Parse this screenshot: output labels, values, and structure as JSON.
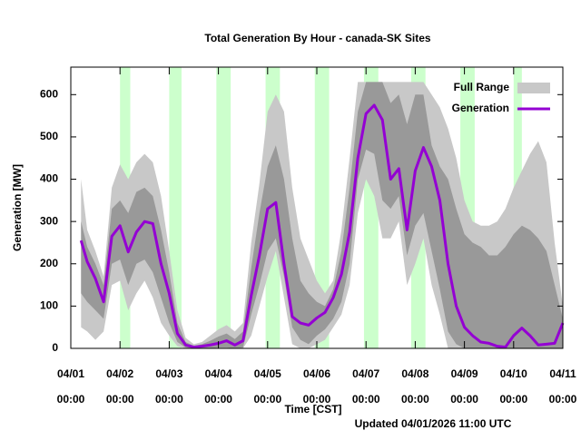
{
  "chart_data": {
    "type": "line",
    "title": "Total Generation By Hour - canada-SK Sites",
    "x_label": "Time [CST]",
    "y_label": "Generation [MW]",
    "footnote": "Updated 04/01/2026 11:00 UTC",
    "xlim": [
      0,
      240
    ],
    "ylim": [
      0,
      665
    ],
    "yticks": [
      0,
      100,
      200,
      300,
      400,
      500,
      600
    ],
    "xticks": [
      {
        "value": 0,
        "label": "04/01\n00:00"
      },
      {
        "value": 24,
        "label": "04/02\n00:00"
      },
      {
        "value": 48,
        "label": "04/03\n00:00"
      },
      {
        "value": 72,
        "label": "04/04\n00:00"
      },
      {
        "value": 96,
        "label": "04/05\n00:00"
      },
      {
        "value": 120,
        "label": "04/06\n00:00"
      },
      {
        "value": 144,
        "label": "04/07\n00:00"
      },
      {
        "value": 168,
        "label": "04/08\n00:00"
      },
      {
        "value": 192,
        "label": "04/09\n00:00"
      },
      {
        "value": 216,
        "label": "04/10\n00:00"
      },
      {
        "value": 240,
        "label": "04/11\n00:00"
      }
    ],
    "shading": {
      "color": "#ccffcc",
      "spans": [
        [
          24,
          29
        ],
        [
          48,
          54
        ],
        [
          71,
          78
        ],
        [
          95,
          102
        ],
        [
          119,
          126
        ],
        [
          143,
          150
        ],
        [
          166,
          173
        ],
        [
          190,
          197
        ],
        [
          216,
          220
        ]
      ]
    },
    "x": [
      5,
      8,
      12,
      16,
      20,
      24,
      28,
      32,
      36,
      40,
      44,
      48,
      52,
      56,
      60,
      64,
      68,
      72,
      76,
      80,
      84,
      88,
      92,
      96,
      100,
      104,
      108,
      112,
      116,
      120,
      124,
      128,
      132,
      136,
      140,
      144,
      148,
      152,
      156,
      160,
      164,
      168,
      172,
      176,
      180,
      184,
      188,
      192,
      196,
      200,
      204,
      208,
      212,
      216,
      220,
      224,
      228,
      232,
      236,
      240
    ],
    "bands": [
      {
        "name": "Full Range",
        "color": "#c8c8c8",
        "max": [
          400,
          280,
          230,
          170,
          380,
          435,
          400,
          440,
          460,
          440,
          360,
          230,
          90,
          25,
          10,
          15,
          30,
          45,
          55,
          40,
          60,
          250,
          390,
          560,
          600,
          560,
          380,
          260,
          210,
          160,
          130,
          160,
          280,
          450,
          630,
          630,
          630,
          630,
          630,
          630,
          630,
          630,
          630,
          600,
          570,
          520,
          450,
          350,
          300,
          290,
          290,
          300,
          330,
          380,
          420,
          460,
          490,
          440,
          250,
          100
        ],
        "min": [
          50,
          40,
          20,
          40,
          150,
          160,
          90,
          130,
          160,
          120,
          60,
          30,
          5,
          0,
          0,
          0,
          0,
          0,
          0,
          0,
          0,
          30,
          100,
          170,
          230,
          120,
          10,
          0,
          0,
          10,
          20,
          50,
          80,
          150,
          320,
          400,
          360,
          260,
          260,
          300,
          150,
          200,
          260,
          150,
          80,
          0,
          0,
          0,
          0,
          0,
          0,
          0,
          0,
          0,
          0,
          0,
          0,
          0,
          0,
          0
        ]
      },
      {
        "color": "#999999",
        "max": [
          300,
          240,
          200,
          150,
          330,
          350,
          320,
          370,
          380,
          360,
          280,
          180,
          60,
          15,
          6,
          10,
          18,
          28,
          35,
          22,
          40,
          190,
          320,
          430,
          480,
          400,
          260,
          160,
          130,
          110,
          100,
          140,
          230,
          380,
          560,
          630,
          630,
          630,
          580,
          600,
          530,
          600,
          600,
          480,
          430,
          400,
          330,
          270,
          250,
          240,
          220,
          220,
          240,
          270,
          290,
          280,
          260,
          230,
          150,
          70
        ],
        "min": [
          130,
          110,
          90,
          70,
          200,
          210,
          150,
          200,
          210,
          180,
          120,
          60,
          15,
          2,
          0,
          0,
          0,
          2,
          2,
          0,
          2,
          80,
          150,
          230,
          260,
          170,
          50,
          20,
          10,
          30,
          45,
          70,
          110,
          200,
          400,
          470,
          460,
          350,
          330,
          360,
          220,
          290,
          320,
          230,
          140,
          40,
          10,
          0,
          0,
          0,
          0,
          0,
          0,
          0,
          0,
          0,
          0,
          0,
          0,
          0
        ]
      }
    ],
    "series": [
      {
        "name": "Generation",
        "color": "#9400d3",
        "values": [
          255,
          205,
          165,
          110,
          265,
          290,
          228,
          275,
          300,
          295,
          200,
          130,
          35,
          8,
          3,
          5,
          8,
          12,
          18,
          8,
          18,
          125,
          220,
          330,
          345,
          200,
          75,
          60,
          55,
          72,
          85,
          120,
          175,
          275,
          450,
          555,
          575,
          540,
          400,
          425,
          280,
          420,
          475,
          430,
          350,
          200,
          100,
          50,
          30,
          15,
          12,
          5,
          3,
          30,
          48,
          30,
          8,
          10,
          12,
          60
        ]
      }
    ]
  }
}
